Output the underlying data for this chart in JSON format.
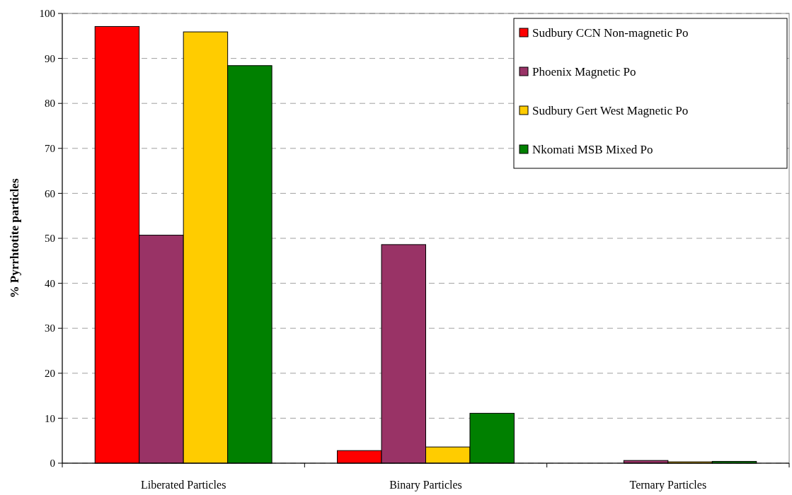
{
  "chart_data": {
    "type": "bar",
    "ylabel": "% Pyrrhtotite particles",
    "categories": [
      "Liberated Particles",
      "Binary Particles",
      "Ternary Particles"
    ],
    "series": [
      {
        "name": "Sudbury CCN Non-magnetic Po",
        "color": "#ff0000",
        "values": [
          97.1,
          2.8,
          null
        ]
      },
      {
        "name": "Phoenix Magnetic Po",
        "color": "#993366",
        "values": [
          50.7,
          48.6,
          0.6
        ]
      },
      {
        "name": "Sudbury Gert West Magnetic Po",
        "color": "#ffcc00",
        "values": [
          95.9,
          3.6,
          0.3
        ]
      },
      {
        "name": "Nkomati MSB Mixed Po",
        "color": "#008000",
        "values": [
          88.4,
          11.1,
          0.4
        ]
      }
    ],
    "ylim": [
      0,
      100
    ],
    "yticks": [
      0,
      10,
      20,
      30,
      40,
      50,
      60,
      70,
      80,
      90,
      100
    ],
    "grid": "y",
    "legend": "top right"
  }
}
